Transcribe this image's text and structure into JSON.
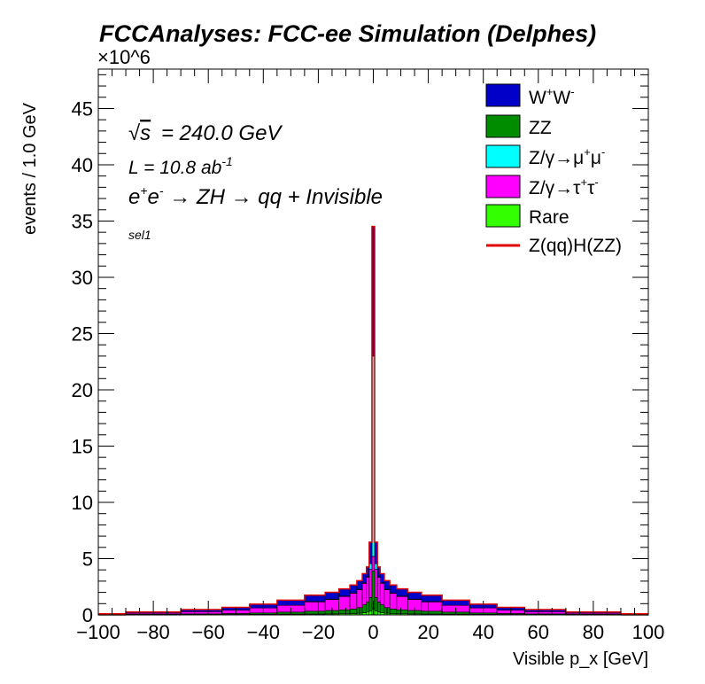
{
  "chart_data": {
    "type": "histogram-stacked",
    "title": "FCCAnalyses: FCC-ee Simulation (Delphes)",
    "xlabel": "Visible p_x [GeV]",
    "ylabel": "events / 1.0 GeV",
    "y_exponent_label": "×10^6",
    "xlim": [
      -100,
      100
    ],
    "ylim": [
      0,
      48.5
    ],
    "x_ticks": [
      "−100",
      "−80",
      "−60",
      "−40",
      "−20",
      "0",
      "20",
      "40",
      "60",
      "80",
      "100"
    ],
    "y_ticks": [
      "0",
      "5",
      "10",
      "15",
      "20",
      "25",
      "30",
      "35",
      "40",
      "45"
    ],
    "annotations": {
      "sqrt_s": "= 240.0 GeV",
      "lumi": "L = 10.8 ab",
      "lumi_exp": "-1",
      "process_a": "e",
      "process_b": "e",
      "process_c": " → ZH → qq + Invisible",
      "selection": "sel1"
    },
    "legend": {
      "ww": {
        "a": "W",
        "b": "+",
        "c": "W",
        "d": "-",
        "color": "#0000c8"
      },
      "zz": {
        "a": "ZZ",
        "color": "#008c00"
      },
      "zmumu": {
        "a": "Z/γ→μ",
        "b": "+",
        "c": "μ",
        "d": "-",
        "color": "#00ffff"
      },
      "ztautau": {
        "a": "Z/γ→τ",
        "b": "+",
        "c": "τ",
        "d": "-",
        "color": "#ff00ff"
      },
      "rare": {
        "a": "Rare",
        "color": "#33ff00"
      },
      "signal": {
        "a": "Z(qq)H(ZZ)",
        "color": "#e00000"
      }
    },
    "bin_centers": [
      -100,
      -80,
      -60,
      -50,
      -40,
      -30,
      -20,
      -15,
      -10,
      -7,
      -5,
      -3,
      -2,
      -1,
      0,
      1,
      2,
      3,
      5,
      7,
      10,
      15,
      20,
      30,
      40,
      50,
      60,
      80,
      100
    ],
    "series": [
      {
        "name": "Rare",
        "values": [
          0.01,
          0.02,
          0.03,
          0.04,
          0.05,
          0.07,
          0.08,
          0.09,
          0.1,
          0.12,
          0.15,
          0.2,
          0.25,
          0.35,
          0.5,
          0.35,
          0.25,
          0.2,
          0.15,
          0.12,
          0.1,
          0.09,
          0.08,
          0.07,
          0.05,
          0.04,
          0.03,
          0.02,
          0.01
        ]
      },
      {
        "name": "ZZ",
        "values": [
          0.02,
          0.03,
          0.06,
          0.08,
          0.12,
          0.18,
          0.25,
          0.3,
          0.35,
          0.4,
          0.5,
          0.7,
          0.9,
          1.2,
          3.4,
          1.2,
          0.9,
          0.7,
          0.5,
          0.4,
          0.35,
          0.3,
          0.25,
          0.18,
          0.12,
          0.08,
          0.06,
          0.03,
          0.02
        ]
      },
      {
        "name": "Z/γ→τ+τ-",
        "values": [
          0.03,
          0.1,
          0.2,
          0.3,
          0.45,
          0.6,
          0.85,
          1.0,
          1.2,
          1.4,
          1.6,
          1.9,
          2.2,
          2.5,
          1.3,
          2.5,
          2.2,
          1.9,
          1.6,
          1.4,
          1.2,
          1.0,
          0.85,
          0.6,
          0.45,
          0.3,
          0.2,
          0.1,
          0.03
        ]
      },
      {
        "name": "Z/γ→μ+μ-",
        "values": [
          0.0,
          0.0,
          0.0,
          0.0,
          0.0,
          0.0,
          0.01,
          0.01,
          0.02,
          0.03,
          0.03,
          0.05,
          0.05,
          0.5,
          17.8,
          0.5,
          0.05,
          0.05,
          0.03,
          0.03,
          0.02,
          0.01,
          0.01,
          0.0,
          0.0,
          0.0,
          0.0,
          0.0,
          0.0
        ]
      },
      {
        "name": "W+W-",
        "values": [
          0.04,
          0.1,
          0.18,
          0.25,
          0.33,
          0.45,
          0.55,
          0.6,
          0.63,
          0.7,
          0.75,
          0.8,
          0.85,
          1.9,
          11.5,
          1.9,
          0.85,
          0.8,
          0.75,
          0.7,
          0.63,
          0.6,
          0.55,
          0.45,
          0.33,
          0.25,
          0.18,
          0.1,
          0.04
        ]
      }
    ],
    "signal": {
      "name": "Z(qq)H(ZZ)",
      "values": [
        0.001,
        0.002,
        0.003,
        0.004,
        0.005,
        0.006,
        0.007,
        0.008,
        0.009,
        0.01,
        0.011,
        0.012,
        0.013,
        0.014,
        0.015,
        0.014,
        0.013,
        0.012,
        0.011,
        0.01,
        0.009,
        0.008,
        0.007,
        0.006,
        0.005,
        0.004,
        0.003,
        0.002,
        0.001
      ]
    }
  }
}
